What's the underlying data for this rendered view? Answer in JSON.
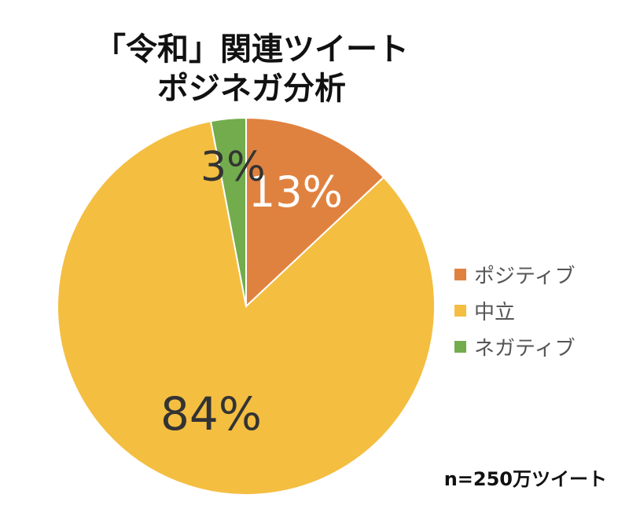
{
  "chart_data": {
    "type": "pie",
    "title_lines": [
      "「令和」関連ツイート",
      "ポジネガ分析"
    ],
    "slices": [
      {
        "name": "ポジティブ",
        "value": 13,
        "label": "13%",
        "color": "#E0823F",
        "label_color": "#ffffff"
      },
      {
        "name": "中立",
        "value": 84,
        "label": "84%",
        "color": "#F4BE41",
        "label_color": "#333333"
      },
      {
        "name": "ネガティブ",
        "value": 3,
        "label": "3%",
        "color": "#72AC4D",
        "label_color": "#333333"
      }
    ],
    "legend_position": "right",
    "note": "n=250万ツイート"
  }
}
